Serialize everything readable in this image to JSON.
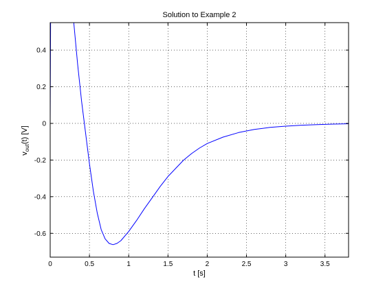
{
  "chart_data": {
    "type": "line",
    "title": "Solution to Example 2",
    "xlabel": "t [s]",
    "ylabel_main": "v",
    "ylabel_sub": "out",
    "ylabel_rest": "(t) [V]",
    "xlim": [
      0,
      3.8
    ],
    "ylim": [
      -0.73,
      0.55
    ],
    "grid": true,
    "line_color": "#0000ff",
    "x_ticks": [
      0,
      0.5,
      1,
      1.5,
      2,
      2.5,
      3,
      3.5
    ],
    "x_tick_labels": [
      "0",
      "0.5",
      "1",
      "1.5",
      "2",
      "2.5",
      "3",
      "3.5"
    ],
    "y_ticks": [
      -0.6,
      -0.4,
      -0.2,
      0,
      0.2,
      0.4
    ],
    "y_tick_labels": [
      "-0.6",
      "-0.4",
      "-0.2",
      "0",
      "0.2",
      "0.4"
    ],
    "series": [
      {
        "x": [
          0,
          0.005,
          0.3,
          0.35,
          0.4,
          0.45,
          0.5,
          0.55,
          0.6,
          0.65,
          0.7,
          0.75,
          0.8,
          0.85,
          0.9,
          1.0,
          1.1,
          1.2,
          1.3,
          1.4,
          1.5,
          1.6,
          1.7,
          1.8,
          1.9,
          2.0,
          2.2,
          2.4,
          2.6,
          2.8,
          3.0,
          3.2,
          3.4,
          3.6,
          3.8
        ],
        "y": [
          0,
          0.55,
          0.55,
          0.32,
          0.12,
          -0.05,
          -0.22,
          -0.37,
          -0.49,
          -0.58,
          -0.63,
          -0.655,
          -0.662,
          -0.655,
          -0.64,
          -0.59,
          -0.53,
          -0.465,
          -0.405,
          -0.345,
          -0.29,
          -0.245,
          -0.2,
          -0.165,
          -0.135,
          -0.11,
          -0.075,
          -0.05,
          -0.033,
          -0.022,
          -0.015,
          -0.01,
          -0.007,
          -0.004,
          -0.002
        ]
      }
    ]
  }
}
